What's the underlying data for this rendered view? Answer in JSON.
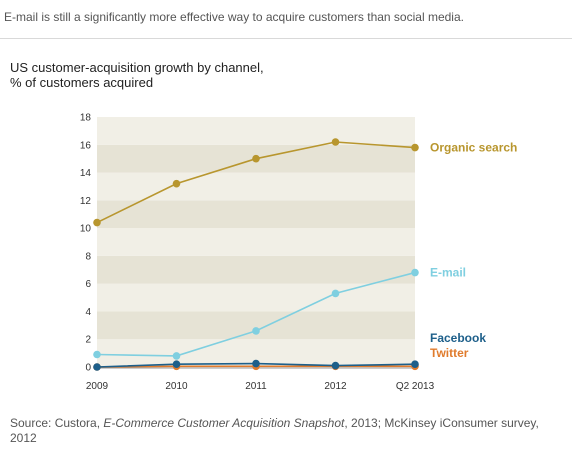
{
  "page": {
    "headline": "E-mail is still a significantly more effective way to acquire customers than social media.",
    "source_prefix": "Source: Custora, ",
    "source_italic": "E-Commerce Customer Acquisition Snapshot",
    "source_suffix": ", 2013; McKinsey iConsumer survey, 2012"
  },
  "chart_data": {
    "type": "line",
    "title_line1": "US customer-acquisition growth by channel,",
    "title_line2": "% of customers acquired",
    "categories": [
      "2009",
      "2010",
      "2011",
      "2012",
      "Q2 2013"
    ],
    "ylim": [
      0,
      18
    ],
    "yticks": [
      0,
      2,
      4,
      6,
      8,
      10,
      12,
      14,
      16,
      18
    ],
    "grid": "alternating bands",
    "series": [
      {
        "name": "Organic search",
        "color": "#b8962e",
        "values": [
          10.4,
          13.2,
          15.0,
          16.2,
          15.8
        ]
      },
      {
        "name": "E-mail",
        "color": "#7fcfe0",
        "values": [
          0.9,
          0.8,
          2.6,
          5.3,
          6.8
        ]
      },
      {
        "name": "Facebook",
        "color": "#1d5f8a",
        "values": [
          0.0,
          0.2,
          0.25,
          0.1,
          0.2
        ]
      },
      {
        "name": "Twitter",
        "color": "#e07b2c",
        "values": [
          0.0,
          0.05,
          0.05,
          0.05,
          0.05
        ]
      }
    ]
  }
}
